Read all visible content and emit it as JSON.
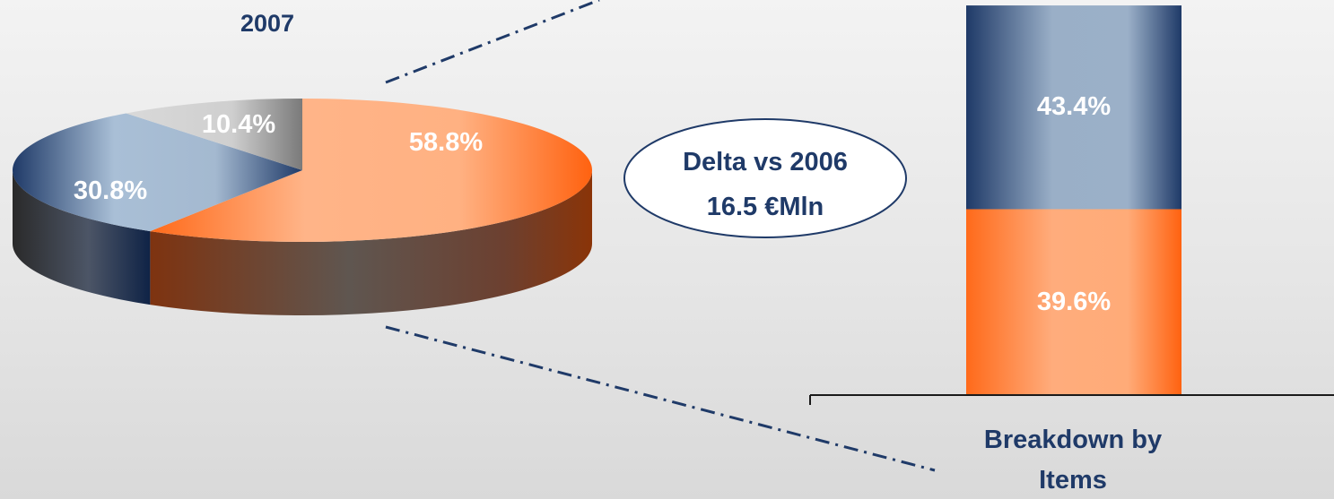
{
  "chart_data": [
    {
      "type": "pie",
      "title": "2007",
      "labels": [
        "58.8%",
        "30.8%",
        "10.4%"
      ],
      "values": [
        58.8,
        30.8,
        10.4
      ],
      "colors": [
        "#ff6a1a",
        "#1f3a68",
        "#8c8c8c"
      ]
    },
    {
      "type": "bar",
      "stacked": true,
      "xlabel": "Breakdown by Items",
      "xlabel_lines": [
        "Breakdown by",
        "Items"
      ],
      "labels": [
        "39.6%",
        "43.4%"
      ],
      "values": [
        39.6,
        43.4
      ],
      "colors": [
        "#ff6a1a",
        "#1f3a68"
      ]
    }
  ],
  "callout": {
    "line1": "Delta vs 2006",
    "line2": "16.5  €Mln"
  },
  "colors": {
    "title_text": "#1f3a68",
    "label_text": "#ffffff"
  }
}
